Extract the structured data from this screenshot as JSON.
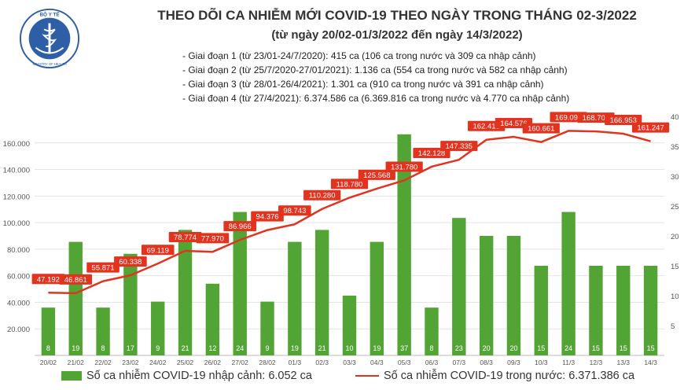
{
  "header": {
    "logo_text_top": "BỘ Y TẾ",
    "logo_text_bottom": "MINISTRY OF HEALTH",
    "title": "THEO DÕI CA NHIỄM MỚI COVID-19 THEO NGÀY TRONG THÁNG 02-3/2022",
    "subtitle": "(từ ngày 20/02-01/3/2022 đến ngày 14/3/2022)",
    "phases": [
      "- Giai đoạn 1 (từ 23/01-24/7/2020): 415 ca (106 ca trong nước và 309 ca nhập cảnh)",
      "- Giai đoạn 2 (từ 25/7/2020-27/01/2021): 1.136 ca (554 ca trong nước và 582 ca nhập cảnh)",
      "- Giai đoạn 3 (từ 28/01-26/4/2021): 1.301 ca (910 ca trong nước và 391 ca nhập cảnh)",
      "- Giai đoạn 4 (từ 27/4/2021): 6.374.586 ca (6.369.816 ca trong nước và 4.770 ca nhập cảnh)"
    ]
  },
  "chart_data": {
    "type": "bar+line",
    "categories": [
      "20/02",
      "21/02",
      "22/02",
      "23/02",
      "24/02",
      "25/02",
      "26/02",
      "27/02",
      "28/02",
      "01/3",
      "02/3",
      "03/3",
      "04/3",
      "05/3",
      "06/3",
      "07/3",
      "08/3",
      "09/3",
      "10/3",
      "11/3",
      "12/3",
      "13/3",
      "14/3"
    ],
    "left_axis": {
      "ticks": [
        "160.000",
        "140.000",
        "120.000",
        "100.000",
        "80.000",
        "60.000",
        "40.000",
        "20.000"
      ],
      "min": 0,
      "max": 180000
    },
    "right_axis": {
      "ticks": [
        "40",
        "35",
        "30",
        "25",
        "20",
        "15",
        "10",
        "5"
      ],
      "min": 0,
      "max": 40
    },
    "series": [
      {
        "name": "Số ca nhiễm COVID-19 nhập cảnh: 6.052 ca",
        "kind": "bar",
        "axis": "right",
        "color": "#52a535",
        "values": [
          8,
          19,
          8,
          17,
          9,
          21,
          12,
          24,
          9,
          19,
          21,
          10,
          19,
          37,
          8,
          23,
          20,
          20,
          15,
          24,
          15,
          15,
          15
        ],
        "labels": [
          "8",
          "19",
          "8",
          "17",
          "9",
          "21",
          "12",
          "24",
          "9",
          "19",
          "21",
          "10",
          "19",
          "37",
          "8",
          "23",
          "20",
          "20",
          "15",
          "24",
          "15",
          "15",
          "15"
        ]
      },
      {
        "name": "Số ca nhiễm COVID-19 trong nước: 6.371.386 ca",
        "kind": "line",
        "axis": "left",
        "color": "#e2331f",
        "values": [
          47192,
          46861,
          55871,
          60338,
          69119,
          78774,
          77970,
          86966,
          94376,
          98743,
          110280,
          118780,
          125568,
          131780,
          142128,
          147335,
          162415,
          164576,
          160661,
          169090,
          168704,
          166953,
          161247
        ],
        "labels": [
          "47.192",
          "46.861",
          "55.871",
          "60.338",
          "69.119",
          "78.774",
          "77.970",
          "86.966",
          "94.376",
          "98.743",
          "110.280",
          "118.780",
          "125.568",
          "131.780",
          "142.128",
          "147.335",
          "162.415",
          "164.576",
          "160.661",
          "169.090",
          "168.704",
          "166.953",
          "161.247"
        ]
      }
    ]
  },
  "legend": {
    "bar_label": "Số ca nhiễm COVID-19 nhập cảnh: 6.052 ca",
    "line_label": "Số ca nhiễm COVID-19 trong nước: 6.371.386 ca"
  },
  "colors": {
    "bar": "#52a535",
    "line": "#e2331f",
    "label_box": "#e2331f"
  }
}
